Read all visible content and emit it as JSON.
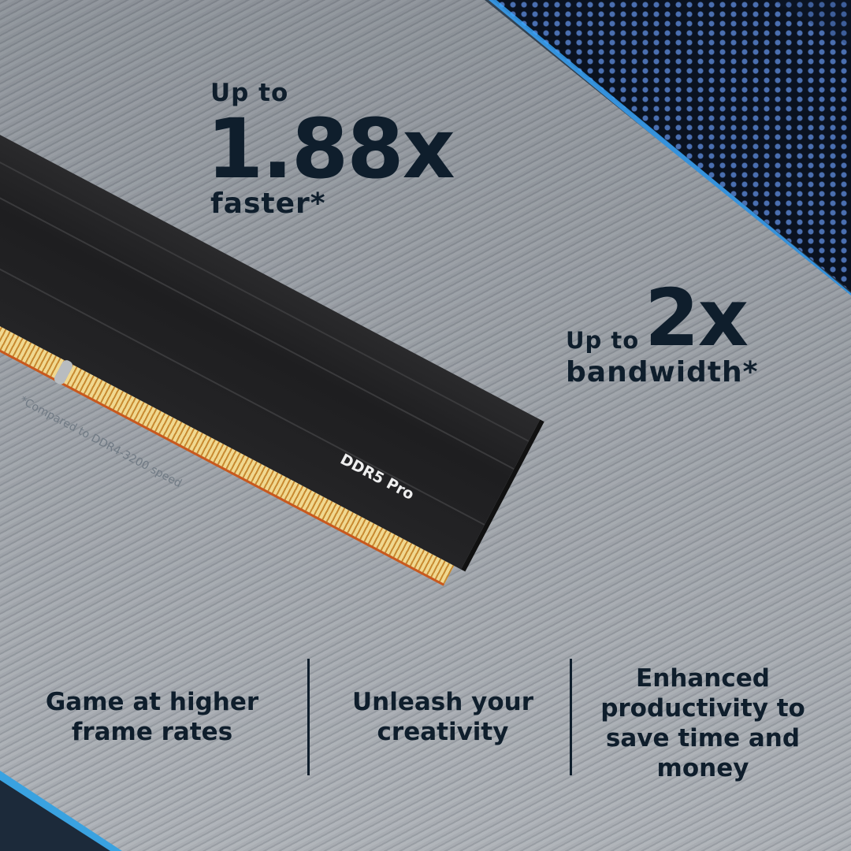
{
  "headline1": {
    "prefix": "Up to",
    "value": "1.88x",
    "suffix": "faster*"
  },
  "headline2": {
    "prefix": "Up to",
    "value": "2x",
    "suffix": "bandwidth*"
  },
  "footnote": "*Compared to DDR4-3200 speed",
  "product_label": "DDR5 Pro",
  "features": [
    "Game at higher frame rates",
    "Unleash your creativity",
    "Enhanced productivity to save time and money"
  ],
  "colors": {
    "text": "#0f1e2c",
    "accent": "#38a8ff"
  }
}
